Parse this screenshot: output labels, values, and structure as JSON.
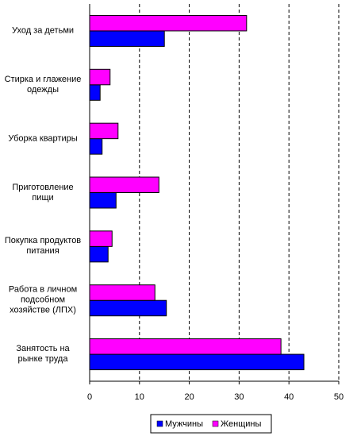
{
  "chart_data": {
    "type": "barh",
    "categories": [
      "Уход за детьми",
      "Стирка и глажение\nодежды",
      "Уборка квартиры",
      "Приготовление\nпищи",
      "Покупка продуктов\nпитания",
      "Работа в личном\nподсобном\nхозяйстве (ЛПХ)",
      "Занятость на\nрынке труда"
    ],
    "series": [
      {
        "name": "Мужчины",
        "color": "#0000ff",
        "values": [
          15.0,
          2.1,
          2.5,
          5.3,
          3.7,
          15.4,
          43.0
        ]
      },
      {
        "name": "Женщины",
        "color": "#ff00ff",
        "values": [
          31.5,
          4.1,
          5.7,
          13.9,
          4.5,
          13.1,
          38.4
        ]
      }
    ],
    "xlim": [
      0,
      50
    ],
    "xticks": [
      0,
      10,
      20,
      30,
      40,
      50
    ],
    "grid": true,
    "legend": "bottom"
  }
}
